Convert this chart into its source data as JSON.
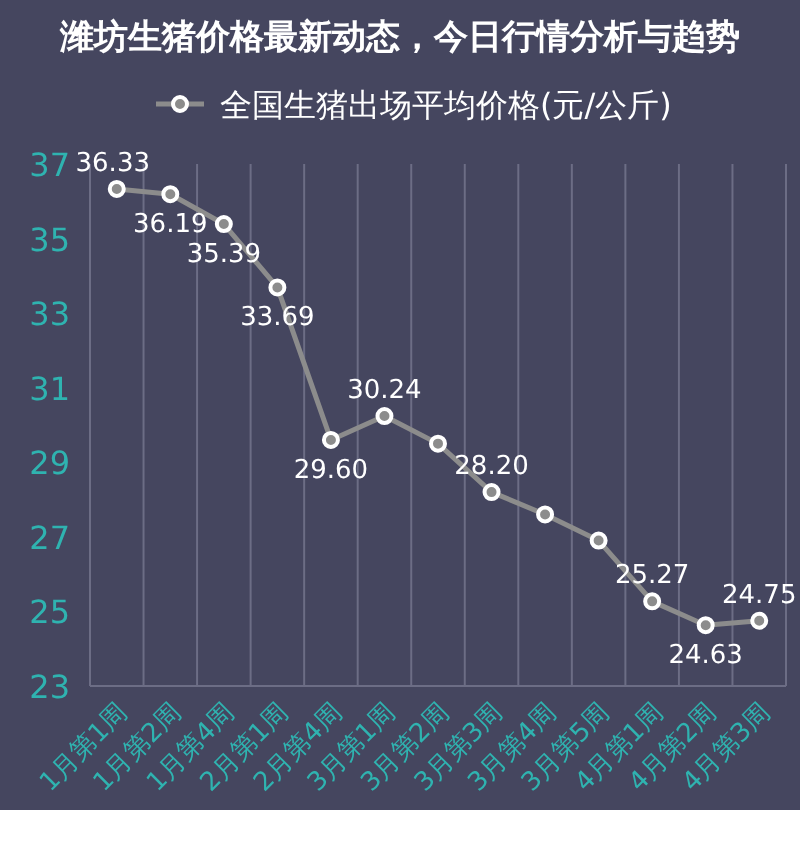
{
  "chart_data": {
    "type": "line",
    "title": "潍坊生猪价格最新动态，今日行情分析与趋势",
    "categories": [
      "1月第1周",
      "1月第2周",
      "1月第4周",
      "2月第1周",
      "2月第4周",
      "3月第1周",
      "3月第2周",
      "3月第3周",
      "3月第4周",
      "3月第5周",
      "4月第1周",
      "4月第2周",
      "4月第3周"
    ],
    "series": [
      {
        "name": "全国生猪出场平均价格(元/公斤)",
        "color": "#8c8c8c",
        "values": [
          36.33,
          36.19,
          35.39,
          33.69,
          29.6,
          30.24,
          29.5,
          28.2,
          27.6,
          26.9,
          25.27,
          24.63,
          24.75
        ],
        "value_labels": [
          "36.33",
          "36.19",
          "35.39",
          "33.69",
          "29.60",
          "30.24",
          null,
          "28.20",
          null,
          null,
          "25.27",
          "24.63",
          "24.75"
        ]
      }
    ],
    "ylim": [
      23,
      37
    ],
    "yticks": [
      23,
      25,
      27,
      29,
      31,
      33,
      35,
      37
    ],
    "grid": "x",
    "legend": "top",
    "marker": "circle",
    "line_style": "solid"
  }
}
